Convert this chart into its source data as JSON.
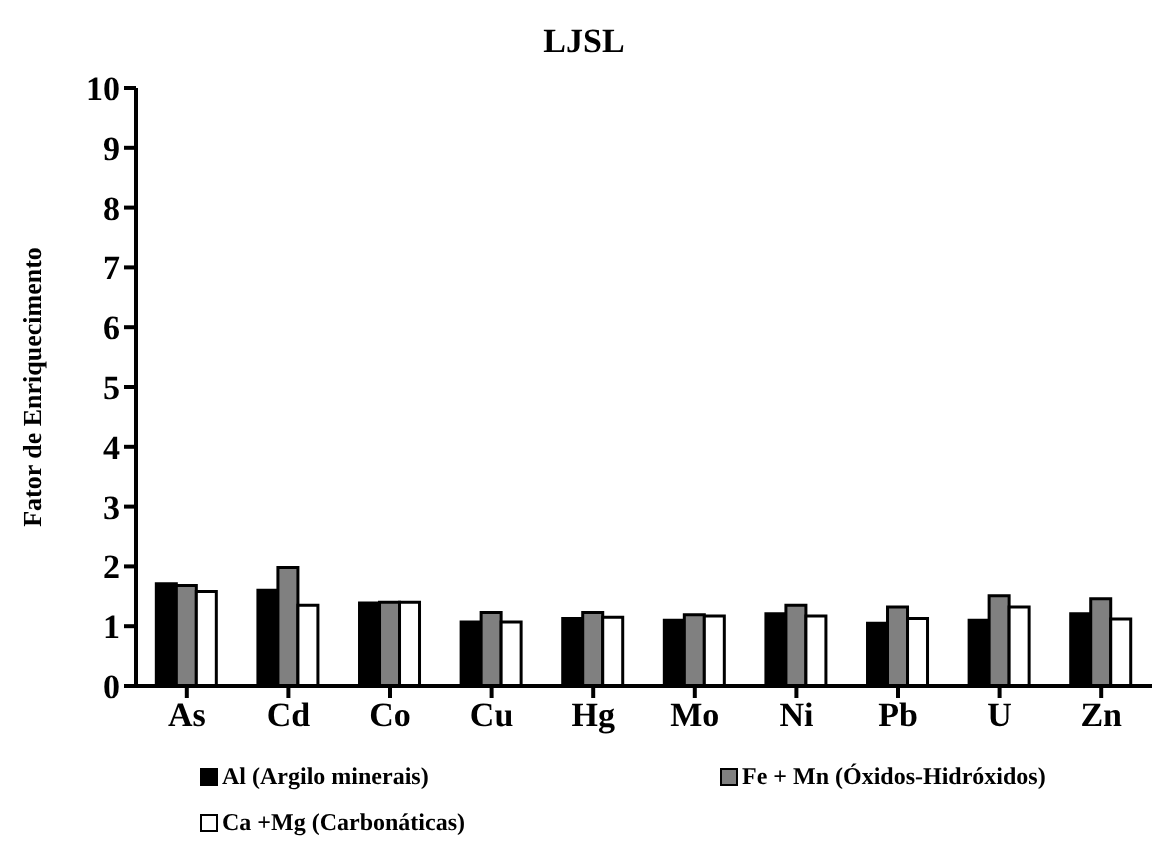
{
  "chart_data": {
    "type": "bar",
    "title": "LJSL",
    "ylabel": "Fator de Enriquecimento",
    "categories": [
      "As",
      "Cd",
      "Co",
      "Cu",
      "Hg",
      "Mo",
      "Ni",
      "Pb",
      "U",
      "Zn"
    ],
    "series": [
      {
        "name": "Al (Argilo minerais)",
        "color": "#000000",
        "values": [
          1.71,
          1.6,
          1.39,
          1.07,
          1.13,
          1.1,
          1.21,
          1.05,
          1.1,
          1.21
        ]
      },
      {
        "name": "Fe + Mn (Óxidos-Hidróxidos)",
        "color": "#808080",
        "values": [
          1.68,
          1.98,
          1.4,
          1.23,
          1.23,
          1.19,
          1.35,
          1.32,
          1.51,
          1.46
        ]
      },
      {
        "name": "Ca +Mg (Carbonáticas)",
        "color": "#ffffff",
        "values": [
          1.58,
          1.35,
          1.4,
          1.07,
          1.15,
          1.17,
          1.17,
          1.13,
          1.32,
          1.12
        ]
      }
    ],
    "ylim": [
      0,
      10
    ],
    "yticks": [
      0,
      1,
      2,
      3,
      4,
      5,
      6,
      7,
      8,
      9,
      10
    ],
    "grid": false,
    "legend": "bottom"
  }
}
